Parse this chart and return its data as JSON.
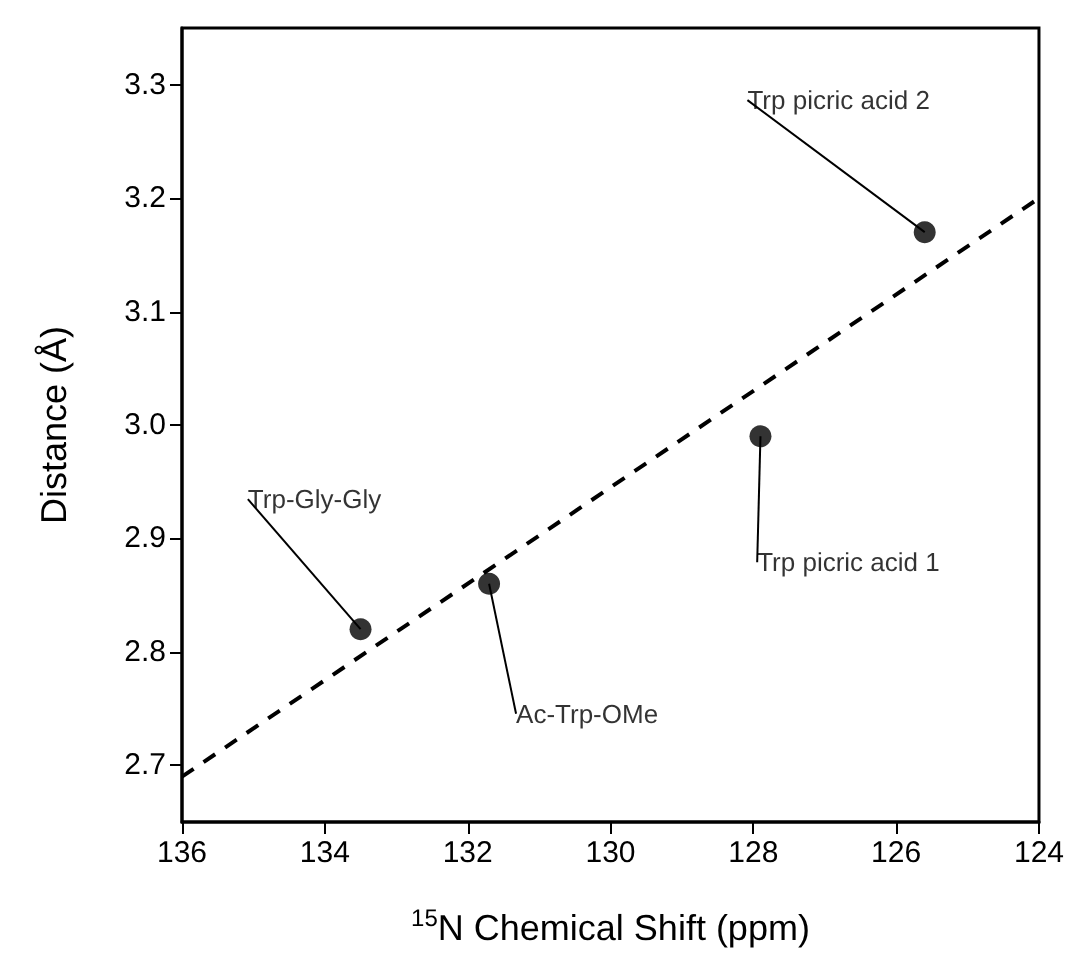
{
  "chart_data": {
    "type": "scatter",
    "xlabel": "$^{15}$N Chemical Shift (ppm)",
    "ylabel": "Distance (Å)",
    "xlim": [
      136,
      124
    ],
    "xticks": [
      136,
      134,
      132,
      130,
      128,
      126,
      124
    ],
    "ylim": [
      2.65,
      3.35
    ],
    "yticks": [
      2.7,
      2.8,
      2.9,
      {
        "value": 3,
        "label": "3.0"
      },
      3.1,
      3.2,
      3.3
    ],
    "grid": false,
    "marker": "circle",
    "series": [
      {
        "color": "#000000",
        "x": [
          133.5,
          131.7,
          127.9,
          125.6
        ],
        "values": [
          2.82,
          2.86,
          2.99,
          3.17
        ]
      },
      {
        "type": "line",
        "color": "#000000",
        "line_style": "dashed",
        "marker": "none",
        "x": [
          136,
          124
        ],
        "values": [
          2.69,
          3.2
        ]
      }
    ],
    "annotations": [
      {
        "text": "Trp-Gly-Gly",
        "x": 133.5,
        "y": 2.82
      },
      {
        "text": "Ac-Trp-OMe",
        "x": 131.7,
        "y": 2.86
      },
      {
        "text": "Trp picric acid 1",
        "x": 127.9,
        "y": 2.99
      },
      {
        "text": "Trp picric acid 2",
        "x": 125.6,
        "y": 3.17
      }
    ]
  }
}
